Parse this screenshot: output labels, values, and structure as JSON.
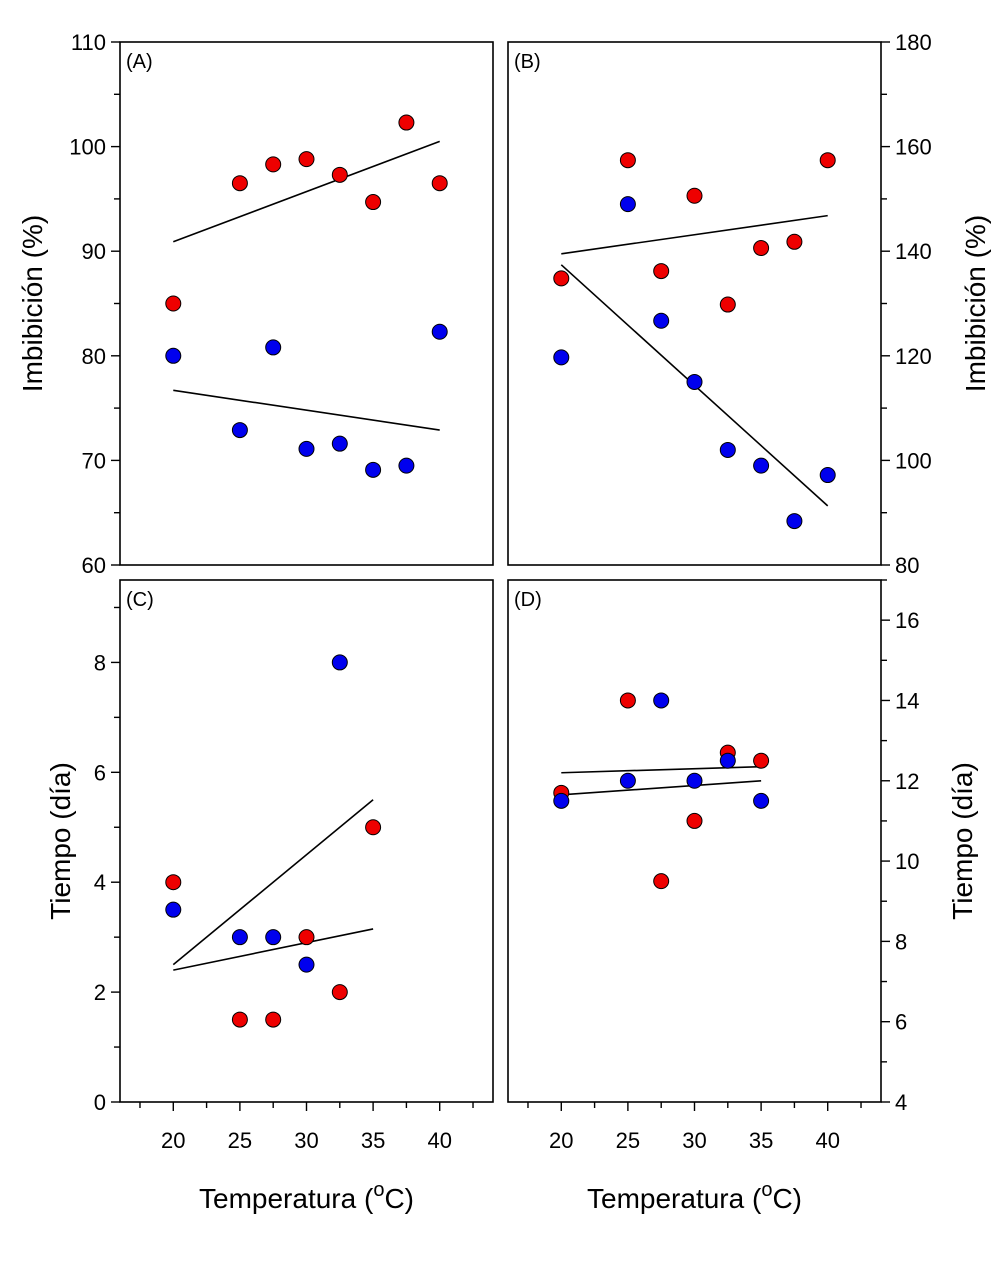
{
  "colors": {
    "red_series": "#ee0000",
    "blue_series": "#0000ee"
  },
  "chart_data": [
    {
      "panel": "A",
      "type": "scatter",
      "label": "(A)",
      "ylabel": "Imbibición (%)",
      "xlabel": "",
      "xlim": [
        16,
        44
      ],
      "ylim": [
        60,
        110
      ],
      "yticks": [
        60,
        70,
        80,
        90,
        100,
        110
      ],
      "xticks": [
        20,
        25,
        30,
        35,
        40
      ],
      "series": [
        {
          "name": "red",
          "color": "#ee0000",
          "x": [
            20,
            25,
            27.5,
            30,
            32.5,
            35,
            37.5,
            40
          ],
          "y": [
            85,
            96.5,
            98.3,
            98.8,
            97.3,
            94.7,
            102.3,
            96.5
          ],
          "fit": [
            [
              20,
              90.9
            ],
            [
              40,
              100.5
            ]
          ]
        },
        {
          "name": "blue",
          "color": "#0000ee",
          "x": [
            20,
            25,
            27.5,
            30,
            32.5,
            35,
            37.5,
            40
          ],
          "y": [
            80,
            72.9,
            80.8,
            71.1,
            71.6,
            69.1,
            69.5,
            82.3
          ],
          "fit": [
            [
              20,
              76.7
            ],
            [
              40,
              72.9
            ]
          ]
        }
      ]
    },
    {
      "panel": "B",
      "type": "scatter",
      "label": "(B)",
      "ylabel": "Imbibición (%)",
      "xlabel": "",
      "xlim": [
        16,
        44
      ],
      "ylim": [
        80,
        180
      ],
      "yticks": [
        80,
        100,
        120,
        140,
        160,
        180
      ],
      "xticks": [
        20,
        25,
        30,
        35,
        40
      ],
      "series": [
        {
          "name": "red",
          "color": "#ee0000",
          "x": [
            20,
            25,
            27.5,
            30,
            32.5,
            35,
            37.5,
            40
          ],
          "y": [
            134.8,
            157.4,
            136.2,
            150.6,
            129.8,
            140.6,
            141.8,
            157.4
          ],
          "fit": [
            [
              20,
              139.5
            ],
            [
              40,
              146.8
            ]
          ]
        },
        {
          "name": "blue",
          "color": "#0000ee",
          "x": [
            20,
            25,
            27.5,
            30,
            32.5,
            35,
            37.5,
            40
          ],
          "y": [
            119.7,
            149,
            126.7,
            115,
            102,
            99,
            88.4,
            97.2
          ],
          "fit": [
            [
              20,
              137.4
            ],
            [
              40,
              91.3
            ]
          ]
        }
      ]
    },
    {
      "panel": "C",
      "type": "scatter",
      "label": "(C)",
      "ylabel": "Tiempo (día)",
      "xlabel": "Temperatura (oC)",
      "xlim": [
        16,
        44
      ],
      "ylim": [
        0,
        9.5
      ],
      "yticks": [
        0,
        2,
        4,
        6,
        8
      ],
      "xticks": [
        20,
        25,
        30,
        35,
        40
      ],
      "series": [
        {
          "name": "red",
          "color": "#ee0000",
          "x": [
            20,
            25,
            27.5,
            30,
            32.5,
            35
          ],
          "y": [
            4,
            1.5,
            1.5,
            3,
            2,
            5
          ],
          "fit": [
            [
              20,
              2.5
            ],
            [
              35,
              5.5
            ]
          ]
        },
        {
          "name": "blue",
          "color": "#0000ee",
          "x": [
            20,
            25,
            27.5,
            30,
            32.5
          ],
          "y": [
            3.5,
            3,
            3,
            2.5,
            8
          ],
          "fit": [
            [
              20,
              2.4
            ],
            [
              35,
              3.15
            ]
          ]
        }
      ]
    },
    {
      "panel": "D",
      "type": "scatter",
      "label": "(D)",
      "ylabel": "Tiempo (día)",
      "xlabel": "Temperatura (oC)",
      "xlim": [
        16,
        44
      ],
      "ylim": [
        4,
        17
      ],
      "yticks": [
        4,
        6,
        8,
        10,
        12,
        14,
        16
      ],
      "xticks": [
        20,
        25,
        30,
        35,
        40
      ],
      "series": [
        {
          "name": "red",
          "color": "#ee0000",
          "x": [
            20,
            25,
            27.5,
            30,
            32.5,
            35
          ],
          "y": [
            11.7,
            14,
            9.5,
            11,
            12.7,
            12.5
          ],
          "fit": [
            [
              20,
              12.2
            ],
            [
              35,
              12.35
            ]
          ]
        },
        {
          "name": "blue",
          "color": "#0000ee",
          "x": [
            20,
            25,
            27.5,
            30,
            32.5,
            35
          ],
          "y": [
            11.5,
            12,
            14,
            12,
            12.5,
            11.5
          ],
          "fit": [
            [
              20,
              11.65
            ],
            [
              35,
              12
            ]
          ]
        }
      ]
    }
  ]
}
